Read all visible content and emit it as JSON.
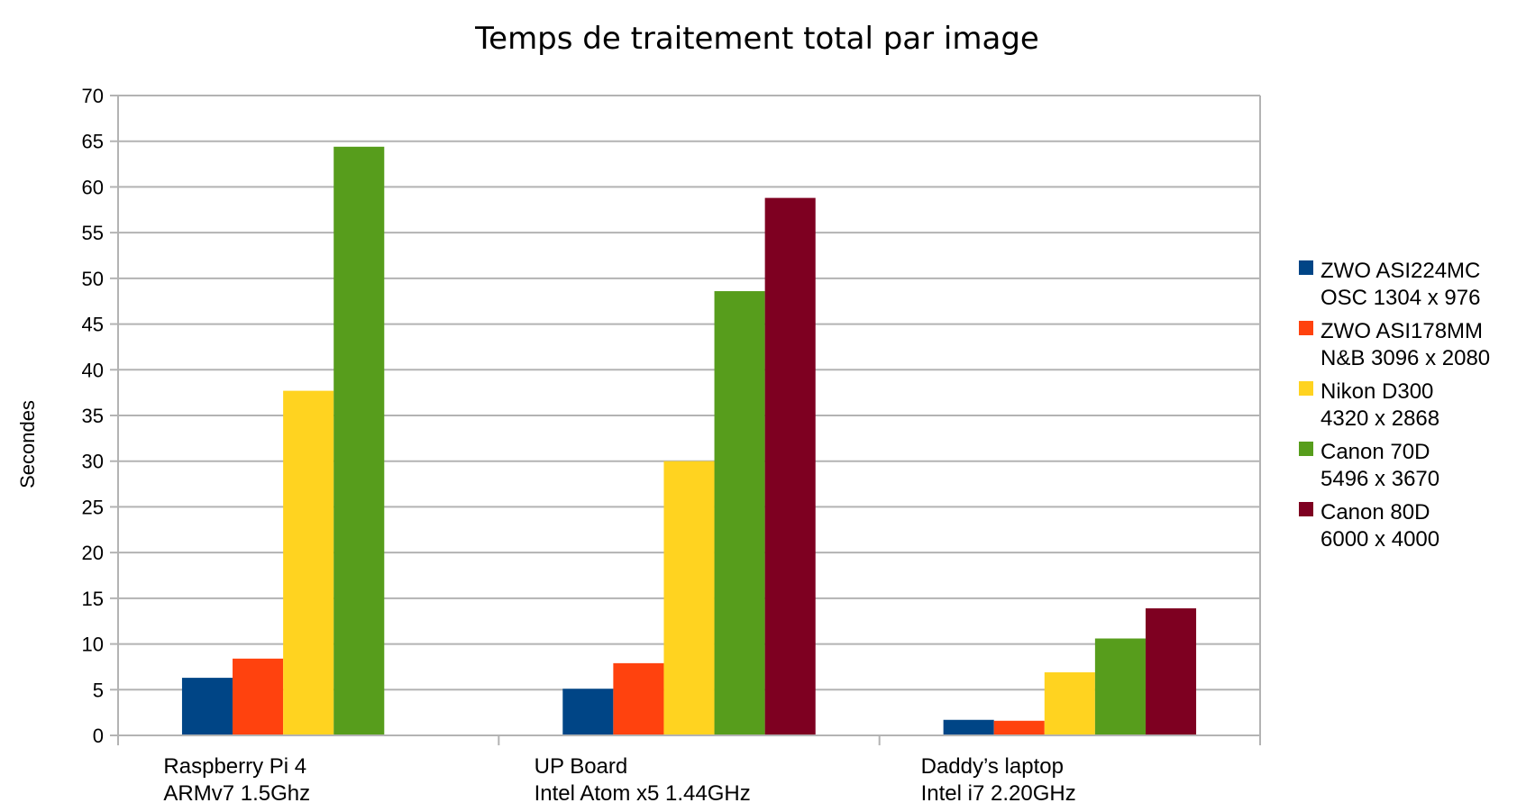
{
  "chart_data": {
    "type": "bar",
    "title": "Temps de traitement total par image",
    "xlabel": "",
    "ylabel": "Secondes",
    "ylim": [
      0,
      70
    ],
    "ytick_step": 5,
    "grid": true,
    "legend_position": "right",
    "categories": [
      [
        "Raspberry Pi 4",
        "ARMv7 1.5Ghz"
      ],
      [
        "UP Board",
        "Intel Atom x5 1.44GHz"
      ],
      [
        "Daddy’s laptop",
        "Intel i7 2.20GHz"
      ]
    ],
    "series": [
      {
        "name": [
          "ZWO ASI224MC",
          "OSC 1304 x 976"
        ],
        "color": "#004586",
        "values": [
          6.3,
          5.1,
          1.7
        ]
      },
      {
        "name": [
          "ZWO ASI178MM",
          "N&B 3096 x 2080"
        ],
        "color": "#ff420e",
        "values": [
          8.4,
          7.9,
          1.6
        ]
      },
      {
        "name": [
          "Nikon D300",
          "4320 x 2868"
        ],
        "color": "#ffd320",
        "values": [
          37.7,
          30.0,
          6.9
        ]
      },
      {
        "name": [
          "Canon 70D",
          "5496 x 3670"
        ],
        "color": "#579d1c",
        "values": [
          64.4,
          48.6,
          10.6
        ]
      },
      {
        "name": [
          "Canon 80D",
          "6000 x 4000"
        ],
        "color": "#7e0021",
        "values": [
          null,
          58.8,
          13.9
        ]
      }
    ]
  }
}
